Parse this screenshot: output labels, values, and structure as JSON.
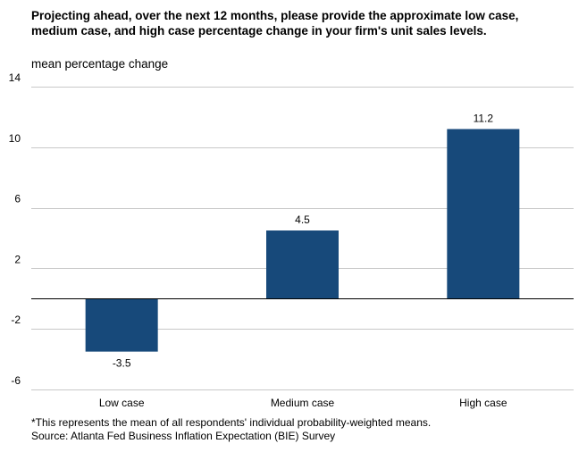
{
  "chart_data": {
    "type": "bar",
    "title": "Projecting ahead, over the next 12 months, please provide the approximate low case, medium case, and high case percentage change in your firm's unit sales levels.",
    "ylabel": "mean percentage change",
    "xlabel": "",
    "categories": [
      "Low case",
      "Medium case",
      "High case"
    ],
    "values": [
      -3.5,
      4.5,
      11.2
    ],
    "data_labels": [
      "-3.5",
      "4.5",
      "11.2"
    ],
    "ylim": [
      -6,
      14
    ],
    "yticks": [
      14,
      10,
      6,
      2,
      -2,
      -6
    ],
    "grid": true,
    "bar_color": "#17497a"
  },
  "footer": {
    "note": "*This represents the mean of all respondents' individual  probability-weighted means.",
    "source": "Source: Atlanta Fed Business Inflation Expectation (BIE) Survey"
  }
}
